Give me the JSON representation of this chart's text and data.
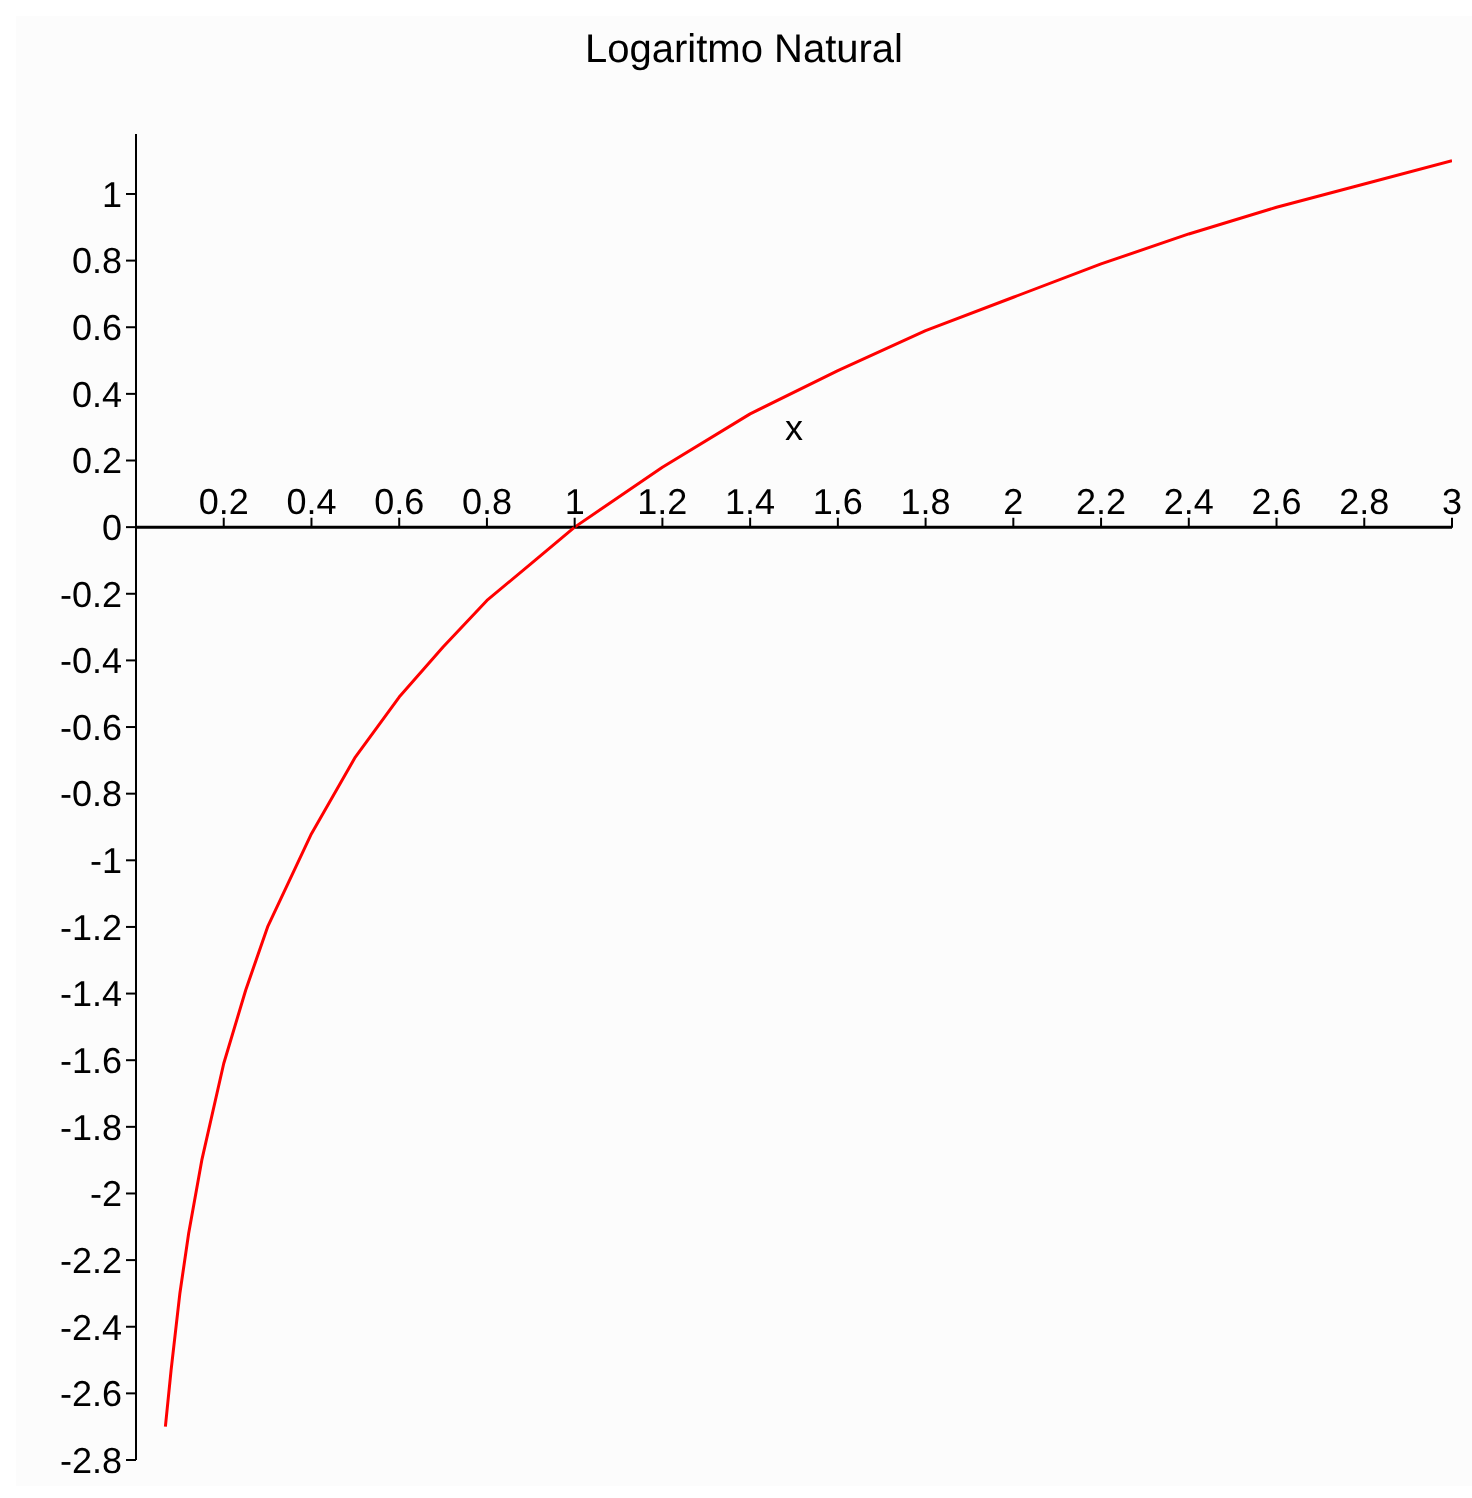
{
  "chart_data": {
    "type": "line",
    "title": "Logaritmo Natural",
    "xlabel": "x",
    "x": [
      0.067,
      0.08,
      0.1,
      0.12,
      0.15,
      0.2,
      0.25,
      0.3,
      0.4,
      0.5,
      0.6,
      0.7,
      0.8,
      0.9,
      1,
      1.2,
      1.4,
      1.6,
      1.8,
      2,
      2.2,
      2.4,
      2.6,
      2.8,
      3
    ],
    "series": [
      {
        "color": "#ff0000",
        "values": [
          -2.7,
          -2.53,
          -2.3,
          -2.12,
          -1.9,
          -1.61,
          -1.39,
          -1.2,
          -0.92,
          -0.69,
          -0.51,
          -0.36,
          -0.22,
          -0.11,
          0,
          0.18,
          0.34,
          0.47,
          0.59,
          0.69,
          0.79,
          0.88,
          0.96,
          1.03,
          1.1
        ]
      }
    ],
    "xlim": [
      0,
      3
    ],
    "xticks": [
      0.2,
      0.4,
      0.6,
      0.8,
      1,
      1.2,
      1.4,
      1.6,
      1.8,
      2,
      2.2,
      2.4,
      2.6,
      2.8,
      3
    ],
    "ylim": [
      -2.8,
      1.18
    ],
    "yticks": [
      -2.8,
      -2.6,
      -2.4,
      -2.2,
      -2,
      -1.8,
      -1.6,
      -1.4,
      -1.2,
      -1,
      -0.8,
      -0.6,
      -0.4,
      -0.2,
      0,
      0.2,
      0.4,
      0.6,
      0.8,
      1
    ],
    "grid": false,
    "legend": false,
    "marker": "none",
    "line_style": "solid"
  }
}
